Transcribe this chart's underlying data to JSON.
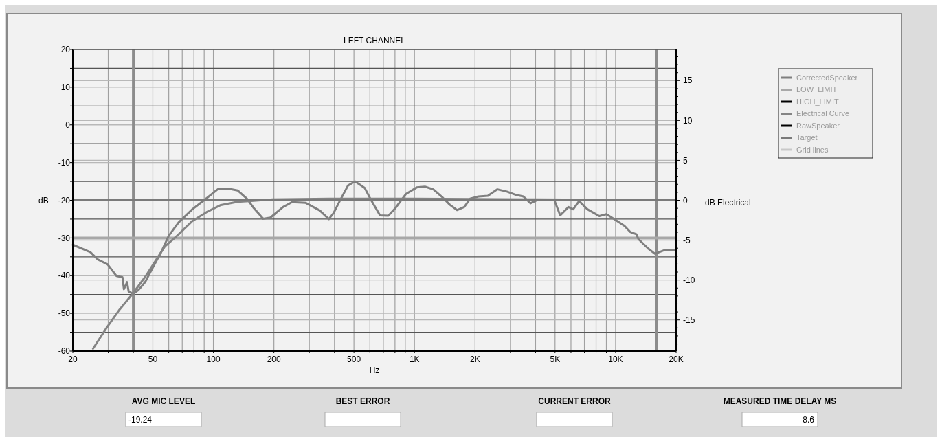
{
  "chart_data": {
    "type": "line",
    "title": "LEFT CHANNEL",
    "xlabel": "Hz",
    "ylabel": "dB",
    "y2label": "dB Electrical",
    "log": "x",
    "grid": true,
    "legend": "right",
    "marker": "none",
    "line_style": "solid",
    "xlim": [
      20,
      20000
    ],
    "ylim": [
      -60,
      20
    ],
    "y2lim": [
      -18.9,
      18.9
    ],
    "xticks": [
      20,
      {
        "value": 30,
        "label": null
      },
      {
        "value": 40,
        "label": null
      },
      50,
      {
        "value": 60,
        "label": null
      },
      {
        "value": 70,
        "label": null
      },
      {
        "value": 80,
        "label": null
      },
      {
        "value": 90,
        "label": null
      },
      100,
      200,
      {
        "value": 300,
        "label": null
      },
      {
        "value": 400,
        "label": null
      },
      500,
      {
        "value": 600,
        "label": null
      },
      {
        "value": 700,
        "label": null
      },
      {
        "value": 800,
        "label": null
      },
      {
        "value": 900,
        "label": null
      },
      {
        "value": 1000,
        "label": "1K"
      },
      {
        "value": 2000,
        "label": "2K"
      },
      {
        "value": 3000,
        "label": null
      },
      {
        "value": 4000,
        "label": null
      },
      {
        "value": 5000,
        "label": "5K"
      },
      {
        "value": 6000,
        "label": null
      },
      {
        "value": 7000,
        "label": null
      },
      {
        "value": 8000,
        "label": null
      },
      {
        "value": 9000,
        "label": null
      },
      {
        "value": 10000,
        "label": "10K"
      },
      {
        "value": 20000,
        "label": "20K"
      }
    ],
    "yticks": [
      20,
      {
        "value": 15,
        "label": null
      },
      10,
      {
        "value": 5,
        "label": null
      },
      0,
      {
        "value": -5,
        "label": null
      },
      -10,
      {
        "value": -15,
        "label": null
      },
      -20,
      {
        "value": -25,
        "label": null
      },
      -30,
      {
        "value": -35,
        "label": null
      },
      -40,
      {
        "value": -45,
        "label": null
      },
      -50,
      {
        "value": -55,
        "label": null
      },
      -60
    ],
    "y2ticks": [
      {
        "value": 18,
        "label": null
      },
      {
        "value": 17,
        "label": null
      },
      {
        "value": 16,
        "label": null
      },
      15,
      {
        "value": 14,
        "label": null
      },
      {
        "value": 13,
        "label": null
      },
      {
        "value": 12,
        "label": null
      },
      {
        "value": 11,
        "label": null
      },
      10,
      {
        "value": 9,
        "label": null
      },
      {
        "value": 8,
        "label": null
      },
      {
        "value": 7,
        "label": null
      },
      {
        "value": 6,
        "label": null
      },
      5,
      {
        "value": 4,
        "label": null
      },
      {
        "value": 3,
        "label": null
      },
      {
        "value": 2,
        "label": null
      },
      {
        "value": 1,
        "label": null
      },
      0,
      {
        "value": -1,
        "label": null
      },
      {
        "value": -2,
        "label": null
      },
      {
        "value": -3,
        "label": null
      },
      {
        "value": -4,
        "label": null
      },
      -5,
      {
        "value": -6,
        "label": null
      },
      {
        "value": -7,
        "label": null
      },
      {
        "value": -8,
        "label": null
      },
      {
        "value": -9,
        "label": null
      },
      -10,
      {
        "value": -11,
        "label": null
      },
      {
        "value": -12,
        "label": null
      },
      {
        "value": -13,
        "label": null
      },
      {
        "value": -14,
        "label": null
      },
      -15,
      {
        "value": -16,
        "label": null
      },
      {
        "value": -17,
        "label": null
      },
      {
        "value": -18,
        "label": null
      }
    ],
    "ref_lines": [
      {
        "axis": "x",
        "value": 40,
        "color": "#8c8c8c"
      },
      {
        "axis": "x",
        "value": 16000,
        "color": "#8c8c8c"
      },
      {
        "axis": "y",
        "value": -30,
        "color": "#a8a8a8"
      }
    ],
    "series": [
      {
        "name": "CorrectedSpeaker",
        "color": "#7f7f7f",
        "x": [
          20,
          24.5,
          26.6,
          29.8,
          33,
          35.3,
          35.9,
          37.2,
          37.9,
          40,
          42.2,
          45.8,
          49.9,
          54.6,
          60,
          67.1,
          78.6,
          90.3,
          105,
          118,
          132,
          147,
          159,
          177,
          192,
          222,
          246,
          288,
          338,
          375,
          396,
          425,
          467,
          506,
          565,
          612,
          674,
          741,
          803,
          908,
          1026,
          1128,
          1241,
          1364,
          1500,
          1628,
          1767,
          1891,
          2079,
          2317,
          2584,
          2880,
          3211,
          3483,
          3776,
          4100,
          4955,
          5305,
          5829,
          6157,
          6588,
          7245,
          8296,
          9008,
          10040,
          11070,
          11815,
          12680,
          12990,
          14530,
          15690,
          17570,
          20000
        ],
        "values": [
          -31.8,
          -33.8,
          -35.7,
          -37,
          -40.1,
          -40.4,
          -43.6,
          -41.7,
          -44.2,
          -44.8,
          -43.9,
          -41.7,
          -37.9,
          -34.1,
          -29.4,
          -25.9,
          -22.4,
          -19.9,
          -17.1,
          -16.9,
          -17.4,
          -19.6,
          -22.1,
          -24.9,
          -24.6,
          -21.8,
          -20.5,
          -20.7,
          -22.7,
          -25,
          -23.4,
          -20.2,
          -16.1,
          -15,
          -16.7,
          -20.2,
          -24,
          -24.1,
          -22.1,
          -18.3,
          -16.6,
          -16.4,
          -17.1,
          -19,
          -21.2,
          -22.6,
          -21.8,
          -19.6,
          -19,
          -18.8,
          -17.1,
          -17.7,
          -18.6,
          -19,
          -20.8,
          -19.9,
          -19.9,
          -24,
          -21.8,
          -22.4,
          -20.2,
          -22.4,
          -24.2,
          -23.7,
          -25.3,
          -26.8,
          -28.4,
          -29,
          -30.3,
          -32.8,
          -34.2,
          -33.2,
          -33.2
        ]
      },
      {
        "name": "LOW_LIMIT",
        "color": "#a8a8a8"
      },
      {
        "name": "HIGH_LIMIT",
        "color": "#000000"
      },
      {
        "name": "Electrical Curve",
        "color": "#848484",
        "axis": "y2",
        "x": [
          25.2,
          29.4,
          33.9,
          40,
          45.8,
          50.6,
          57.3,
          67,
          78.6,
          92.3,
          109,
          132,
          150,
          197,
          376,
          1000,
          4000,
          20000
        ],
        "values": [
          -18.6,
          -16,
          -13.8,
          -11.6,
          -9.6,
          -7.9,
          -5.8,
          -4.3,
          -2.6,
          -1.5,
          -0.6,
          -0.2,
          -0.1,
          0.1,
          0.2,
          0.2,
          0.1,
          0
        ]
      },
      {
        "name": "RawSpeaker",
        "color": "#000000"
      },
      {
        "name": "Target",
        "color": "#7a7a7a",
        "x": [
          20,
          20000
        ],
        "values": [
          -20,
          -20
        ]
      },
      {
        "name": "Grid lines",
        "color": "#c8c8c8"
      }
    ],
    "annotations": [
      "AVG MIC LEVEL",
      "-19.24",
      "BEST ERROR",
      "CURRENT ERROR",
      "MEASURED TIME DELAY MS",
      "8.6"
    ]
  }
}
